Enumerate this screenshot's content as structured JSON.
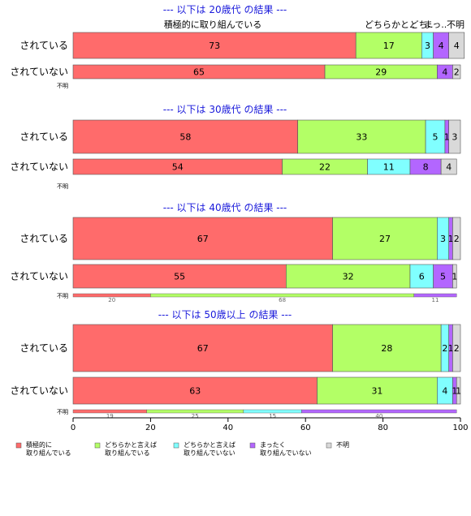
{
  "chart_data": {
    "type": "bar",
    "orientation": "horizontal",
    "stacked": "percent",
    "xlim": [
      0,
      100
    ],
    "x_ticks": [
      "0",
      "20",
      "40",
      "60",
      "80",
      "100"
    ],
    "column_headers": [
      "積極的に取り組んでいる",
      "どちらかと..",
      "どち..",
      "まっ..",
      "不明"
    ],
    "legend": {
      "placement": "bottom",
      "entries": [
        {
          "name": "積極的に\n取り組んでいる",
          "color": "#ff6b6b"
        },
        {
          "name": "どちらかと言えば\n取り組んでいる",
          "color": "#b3ff66"
        },
        {
          "name": "どちらかと言えば\n取り組んでいない",
          "color": "#80ffff"
        },
        {
          "name": "まったく\n取り組んでいない",
          "color": "#b366ff"
        },
        {
          "name": "不明",
          "color": "#d9d9d9"
        }
      ]
    },
    "panels": [
      {
        "title": "--- 以下は 20歳代 の結果 ---",
        "rows": [
          {
            "label": "されている",
            "values": [
              73,
              17,
              3,
              4,
              4
            ]
          },
          {
            "label": "されていない",
            "values": [
              65,
              29,
              0,
              4,
              2
            ]
          },
          {
            "label": "不明",
            "values": []
          }
        ]
      },
      {
        "title": "--- 以下は 30歳代 の結果 ---",
        "rows": [
          {
            "label": "されている",
            "values": [
              58,
              33,
              5,
              1,
              3
            ]
          },
          {
            "label": "されていない",
            "values": [
              54,
              22,
              11,
              8,
              4
            ]
          },
          {
            "label": "不明",
            "values": []
          }
        ]
      },
      {
        "title": "--- 以下は 40歳代 の結果 ---",
        "rows": [
          {
            "label": "されている",
            "values": [
              67,
              27,
              3,
              1,
              2
            ]
          },
          {
            "label": "されていない",
            "values": [
              55,
              32,
              6,
              5,
              1
            ]
          },
          {
            "label": "不明",
            "values": [
              20,
              68,
              0,
              11,
              0
            ]
          }
        ]
      },
      {
        "title": "--- 以下は 50歳以上 の結果 ---",
        "rows": [
          {
            "label": "されている",
            "values": [
              67,
              28,
              2,
              1,
              2
            ]
          },
          {
            "label": "されていない",
            "values": [
              63,
              31,
              4,
              1,
              1
            ]
          },
          {
            "label": "不明",
            "values": [
              19,
              25,
              15,
              40,
              0
            ]
          }
        ]
      }
    ]
  }
}
